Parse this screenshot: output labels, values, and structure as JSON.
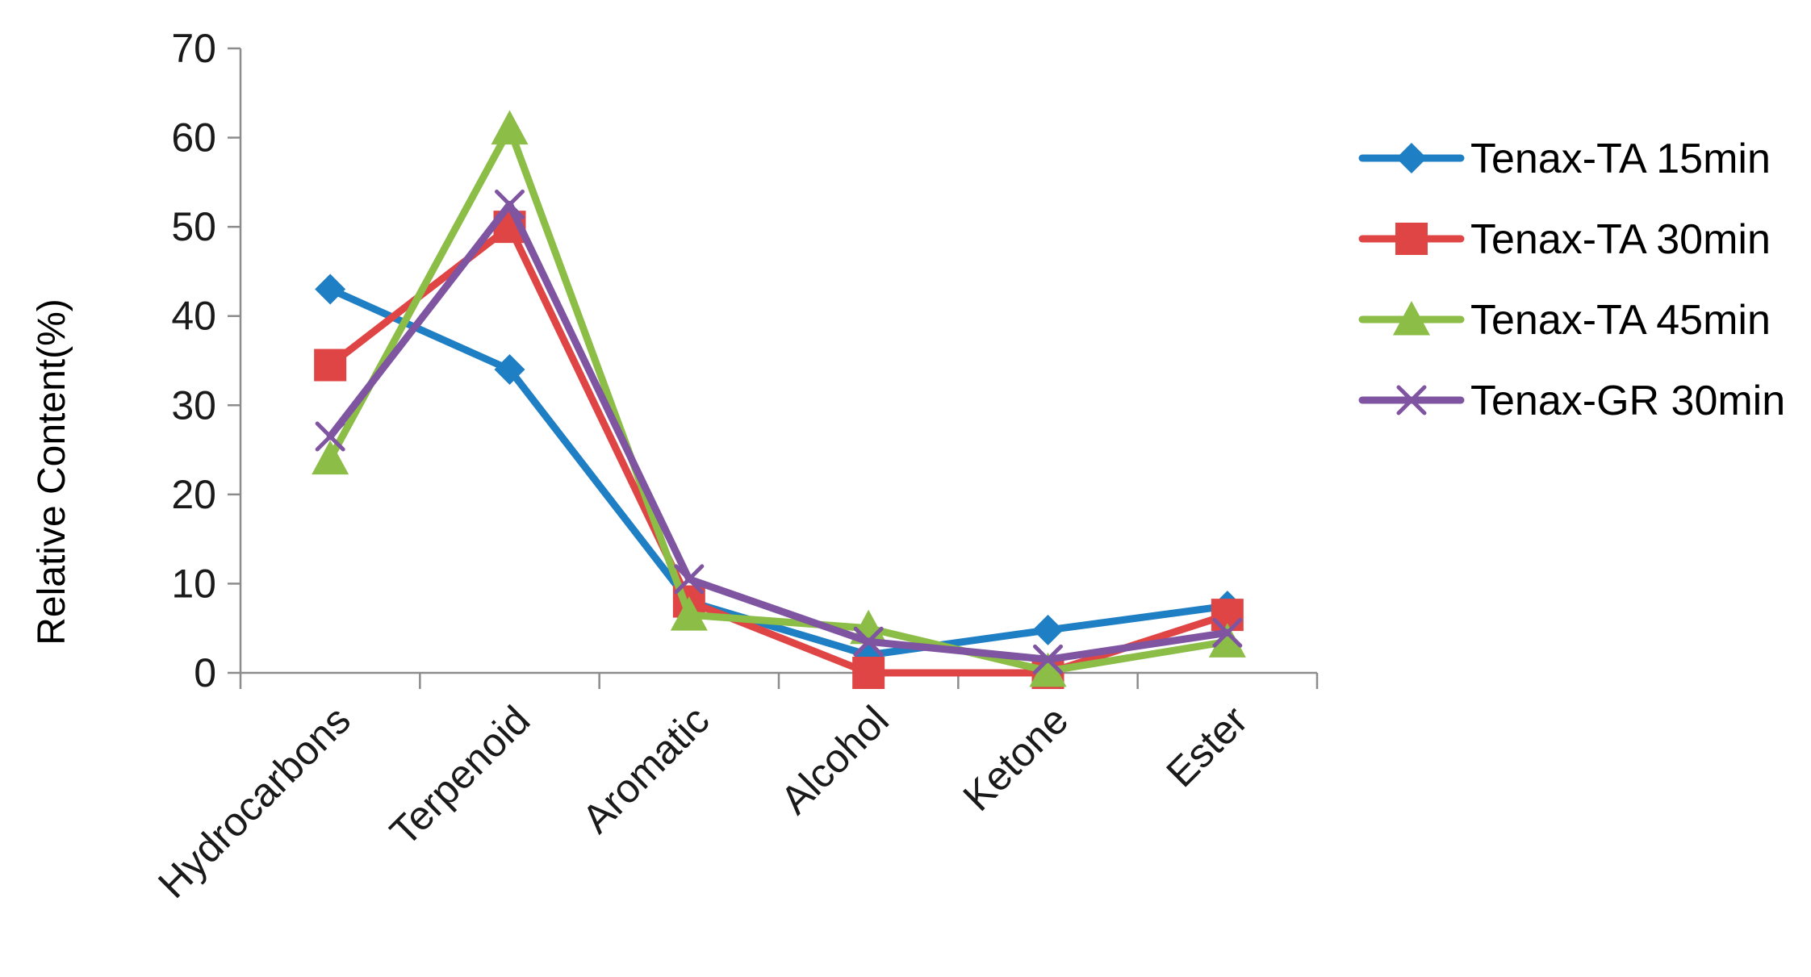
{
  "chart_data": {
    "type": "line",
    "title": "",
    "xlabel": "",
    "ylabel": "Relative Content(%)",
    "categories": [
      "Hydrocarbons",
      "Terpenoid",
      "Aromatic",
      "Alcohol",
      "Ketone",
      "Ester"
    ],
    "ylim": [
      0,
      70
    ],
    "yticks": [
      0,
      10,
      20,
      30,
      40,
      50,
      60,
      70
    ],
    "grid": false,
    "legend_position": "right",
    "series": [
      {
        "name": "Tenax-TA 15min",
        "color": "#1f7fc4",
        "marker": "diamond",
        "values": [
          43,
          34,
          8,
          2,
          4.8,
          7.5
        ]
      },
      {
        "name": "Tenax-TA 30min",
        "color": "#e04545",
        "marker": "square",
        "values": [
          34.5,
          50,
          8,
          0,
          0,
          6.5
        ]
      },
      {
        "name": "Tenax-TA 45min",
        "color": "#8bbd47",
        "marker": "triangle",
        "values": [
          24,
          61,
          6.5,
          5,
          0.2,
          3.5
        ]
      },
      {
        "name": "Tenax-GR 30min",
        "color": "#7f55a2",
        "marker": "x",
        "values": [
          26.5,
          52.5,
          10.5,
          3.5,
          1.5,
          4.5
        ]
      }
    ]
  }
}
